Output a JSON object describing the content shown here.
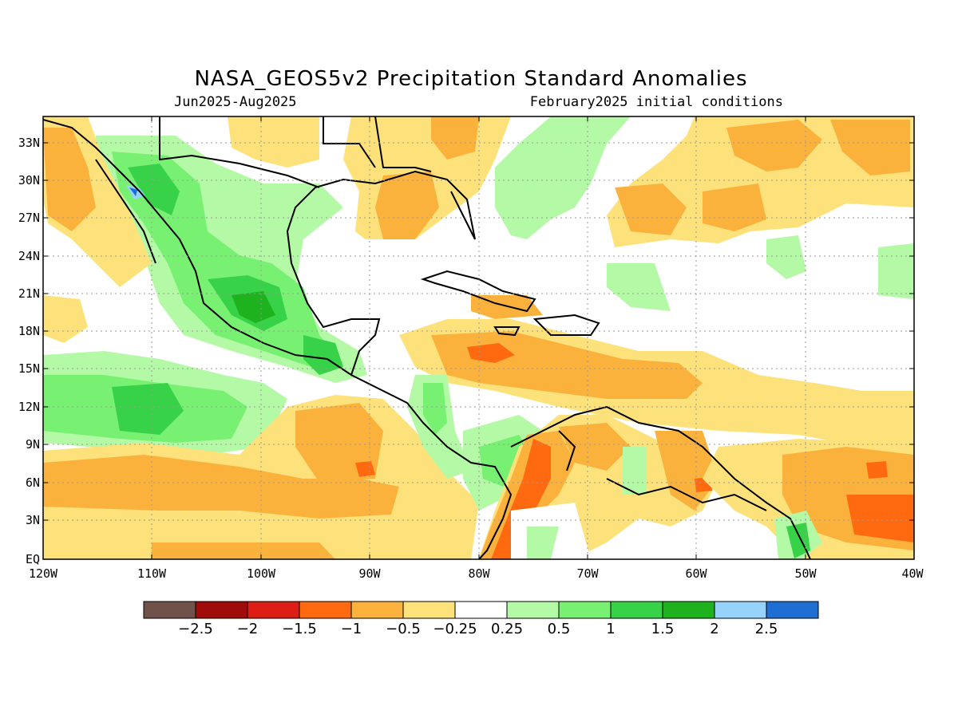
{
  "map": {
    "title": "NASA_GEOS5v2 Precipitation Standard Anomalies",
    "period": "Jun2025-Aug2025",
    "initial_conditions": "February2025 initial conditions",
    "region": {
      "lon_range": [
        -120,
        -40
      ],
      "lat_range": [
        0,
        35
      ]
    },
    "lat_labels": [
      "33N",
      "30N",
      "27N",
      "24N",
      "21N",
      "18N",
      "15N",
      "12N",
      "9N",
      "6N",
      "3N",
      "EQ"
    ],
    "lon_labels": [
      "120W",
      "110W",
      "100W",
      "90W",
      "80W",
      "70W",
      "60W",
      "50W",
      "40W"
    ],
    "colorbar": {
      "colors": [
        "#70524a",
        "#a00b0b",
        "#dc1e14",
        "#ff6a10",
        "#fbb23c",
        "#fde17b",
        "#ffffff",
        "#b4f9a6",
        "#78f173",
        "#37d248",
        "#1eb21e",
        "#96d2fa",
        "#1e6ed4"
      ],
      "labels": [
        "-2.5",
        "-2",
        "-1.5",
        "-1",
        "-0.5",
        "-0.25",
        "0.25",
        "0.5",
        "1",
        "1.5",
        "2",
        "2.5"
      ]
    }
  }
}
